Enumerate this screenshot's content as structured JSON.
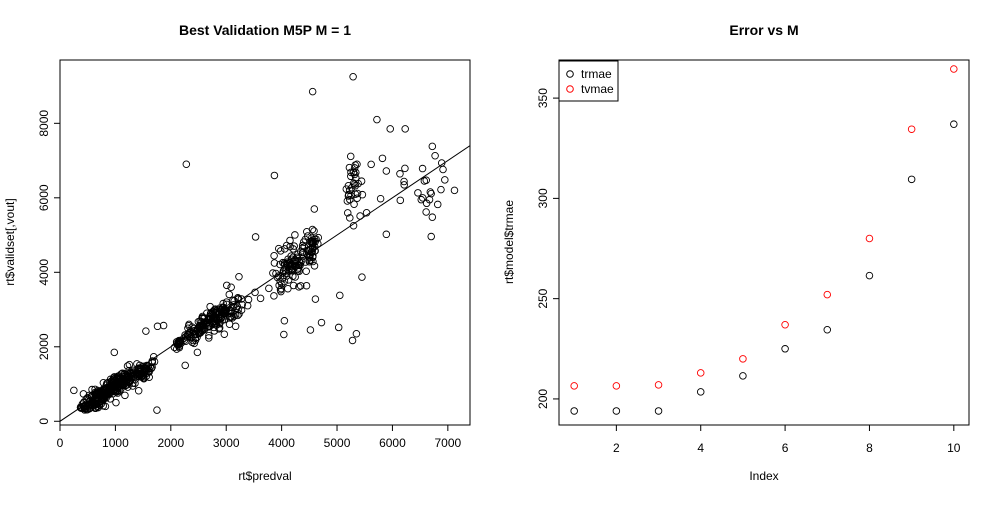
{
  "colors": {
    "black_series": "#000000",
    "red_series": "#ff0000"
  },
  "chart_data": [
    {
      "type": "scatter",
      "title": "Best Validation M5P M =  1",
      "xlabel": "rt$predval",
      "ylabel": "rt$validset[,vout]",
      "xlim": [
        0,
        7400
      ],
      "ylim": [
        -100,
        9700
      ],
      "xticks": [
        0,
        1000,
        2000,
        3000,
        4000,
        5000,
        6000,
        7000
      ],
      "yticks": [
        0,
        2000,
        4000,
        6000,
        8000
      ],
      "grid": false,
      "fit_line": {
        "intercept": 0,
        "slope": 1
      },
      "clusters": [
        {
          "cx": 700,
          "cy": 650,
          "sx": 180,
          "sy": 220,
          "n": 160
        },
        {
          "cx": 1100,
          "cy": 1050,
          "sx": 150,
          "sy": 200,
          "n": 110
        },
        {
          "cx": 1450,
          "cy": 1300,
          "sx": 110,
          "sy": 220,
          "n": 70
        },
        {
          "cx": 2150,
          "cy": 2100,
          "sx": 40,
          "sy": 100,
          "n": 18
        },
        {
          "cx": 2650,
          "cy": 2650,
          "sx": 230,
          "sy": 260,
          "n": 150
        },
        {
          "cx": 3050,
          "cy": 2900,
          "sx": 150,
          "sy": 350,
          "n": 40
        },
        {
          "cx": 4150,
          "cy": 4150,
          "sx": 170,
          "sy": 550,
          "n": 90
        },
        {
          "cx": 4550,
          "cy": 4700,
          "sx": 60,
          "sy": 500,
          "n": 40
        },
        {
          "cx": 5300,
          "cy": 6300,
          "sx": 80,
          "sy": 600,
          "n": 30
        },
        {
          "cx": 5900,
          "cy": 6500,
          "sx": 300,
          "sy": 500,
          "n": 10
        },
        {
          "cx": 6750,
          "cy": 6200,
          "sx": 150,
          "sy": 700,
          "n": 14
        }
      ],
      "points": [
        [
          250,
          830
        ],
        [
          1750,
          300
        ],
        [
          2280,
          6900
        ],
        [
          3870,
          6600
        ],
        [
          4560,
          8850
        ],
        [
          5290,
          9250
        ],
        [
          5720,
          8100
        ],
        [
          5960,
          7850
        ],
        [
          6230,
          7850
        ],
        [
          6720,
          7380
        ],
        [
          6770,
          7130
        ],
        [
          7120,
          6200
        ],
        [
          6670,
          5950
        ],
        [
          6520,
          5950
        ],
        [
          6720,
          5480
        ],
        [
          6700,
          4960
        ],
        [
          5890,
          5020
        ],
        [
          5450,
          3870
        ],
        [
          5350,
          2350
        ],
        [
          5280,
          2170
        ],
        [
          5050,
          3380
        ],
        [
          4050,
          2700
        ],
        [
          4720,
          2650
        ],
        [
          4520,
          2450
        ],
        [
          4040,
          2330
        ],
        [
          3870,
          4250
        ],
        [
          3530,
          4950
        ],
        [
          3230,
          3880
        ],
        [
          3170,
          2550
        ],
        [
          2260,
          1500
        ],
        [
          2480,
          1850
        ],
        [
          980,
          1850
        ],
        [
          1550,
          2420
        ],
        [
          1760,
          2550
        ],
        [
          1870,
          2570
        ],
        [
          1650,
          1420
        ],
        [
          1420,
          820
        ],
        [
          1010,
          500
        ],
        [
          820,
          400
        ],
        [
          440,
          390
        ],
        [
          2870,
          2480
        ],
        [
          3520,
          3460
        ],
        [
          3620,
          3300
        ],
        [
          3980,
          3530
        ],
        [
          5360,
          6900
        ],
        [
          5820,
          7060
        ],
        [
          4590,
          5700
        ],
        [
          4450,
          3640
        ],
        [
          4610,
          3280
        ],
        [
          5230,
          5950
        ],
        [
          5890,
          6720
        ],
        [
          5030,
          2520
        ],
        [
          3010,
          3650
        ]
      ]
    },
    {
      "type": "scatter",
      "title": "Error vs M",
      "xlabel": "Index",
      "ylabel": "rt$model$trmae",
      "xlim": [
        0.64,
        10.36
      ],
      "ylim": [
        187,
        369
      ],
      "xticks": [
        2,
        4,
        6,
        8,
        10
      ],
      "yticks": [
        200,
        250,
        300,
        350
      ],
      "grid": false,
      "legend_position": "top-left",
      "x": [
        1,
        2,
        3,
        4,
        5,
        6,
        7,
        8,
        9,
        10
      ],
      "series": [
        {
          "name": "trmae",
          "color": "#000000",
          "values": [
            194,
            194,
            194,
            203.5,
            211.5,
            225,
            234.5,
            261.5,
            309.5,
            337
          ]
        },
        {
          "name": "tvmae",
          "color": "#ff0000",
          "values": [
            206.5,
            206.5,
            207,
            213,
            220,
            237,
            252,
            280,
            334.5,
            364.5
          ]
        }
      ]
    }
  ]
}
